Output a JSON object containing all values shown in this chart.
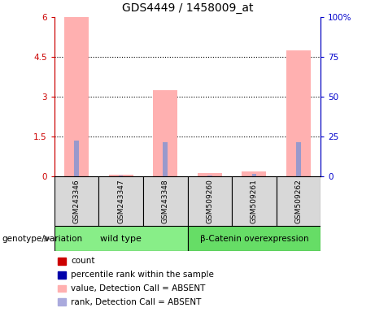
{
  "title": "GDS4449 / 1458009_at",
  "samples": [
    "GSM243346",
    "GSM243347",
    "GSM243348",
    "GSM509260",
    "GSM509261",
    "GSM509262"
  ],
  "pink_bars": [
    6.0,
    0.07,
    3.25,
    0.12,
    0.18,
    4.75
  ],
  "blue_bars": [
    1.35,
    0.03,
    1.28,
    0.03,
    0.08,
    1.28
  ],
  "ylim_left": [
    0,
    6
  ],
  "ylim_right": [
    0,
    100
  ],
  "yticks_left": [
    0,
    1.5,
    3,
    4.5,
    6
  ],
  "ytick_labels_left": [
    "0",
    "1.5",
    "3",
    "4.5",
    "6"
  ],
  "yticks_right": [
    0,
    25,
    50,
    75,
    100
  ],
  "ytick_labels_right": [
    "0",
    "25",
    "50",
    "75",
    "100%"
  ],
  "left_axis_color": "#cc0000",
  "right_axis_color": "#0000cc",
  "pink_color": "#ffb0b0",
  "blue_color": "#9999cc",
  "wt_color": "#88ee88",
  "bc_color": "#66dd66",
  "sample_box_color": "#d8d8d8",
  "legend_items": [
    {
      "label": "count",
      "color": "#cc0000"
    },
    {
      "label": "percentile rank within the sample",
      "color": "#0000aa"
    },
    {
      "label": "value, Detection Call = ABSENT",
      "color": "#ffb0b0"
    },
    {
      "label": "rank, Detection Call = ABSENT",
      "color": "#aaaadd"
    }
  ],
  "genotype_label": "genotype/variation",
  "pink_bar_width": 0.55,
  "blue_bar_width": 0.1
}
